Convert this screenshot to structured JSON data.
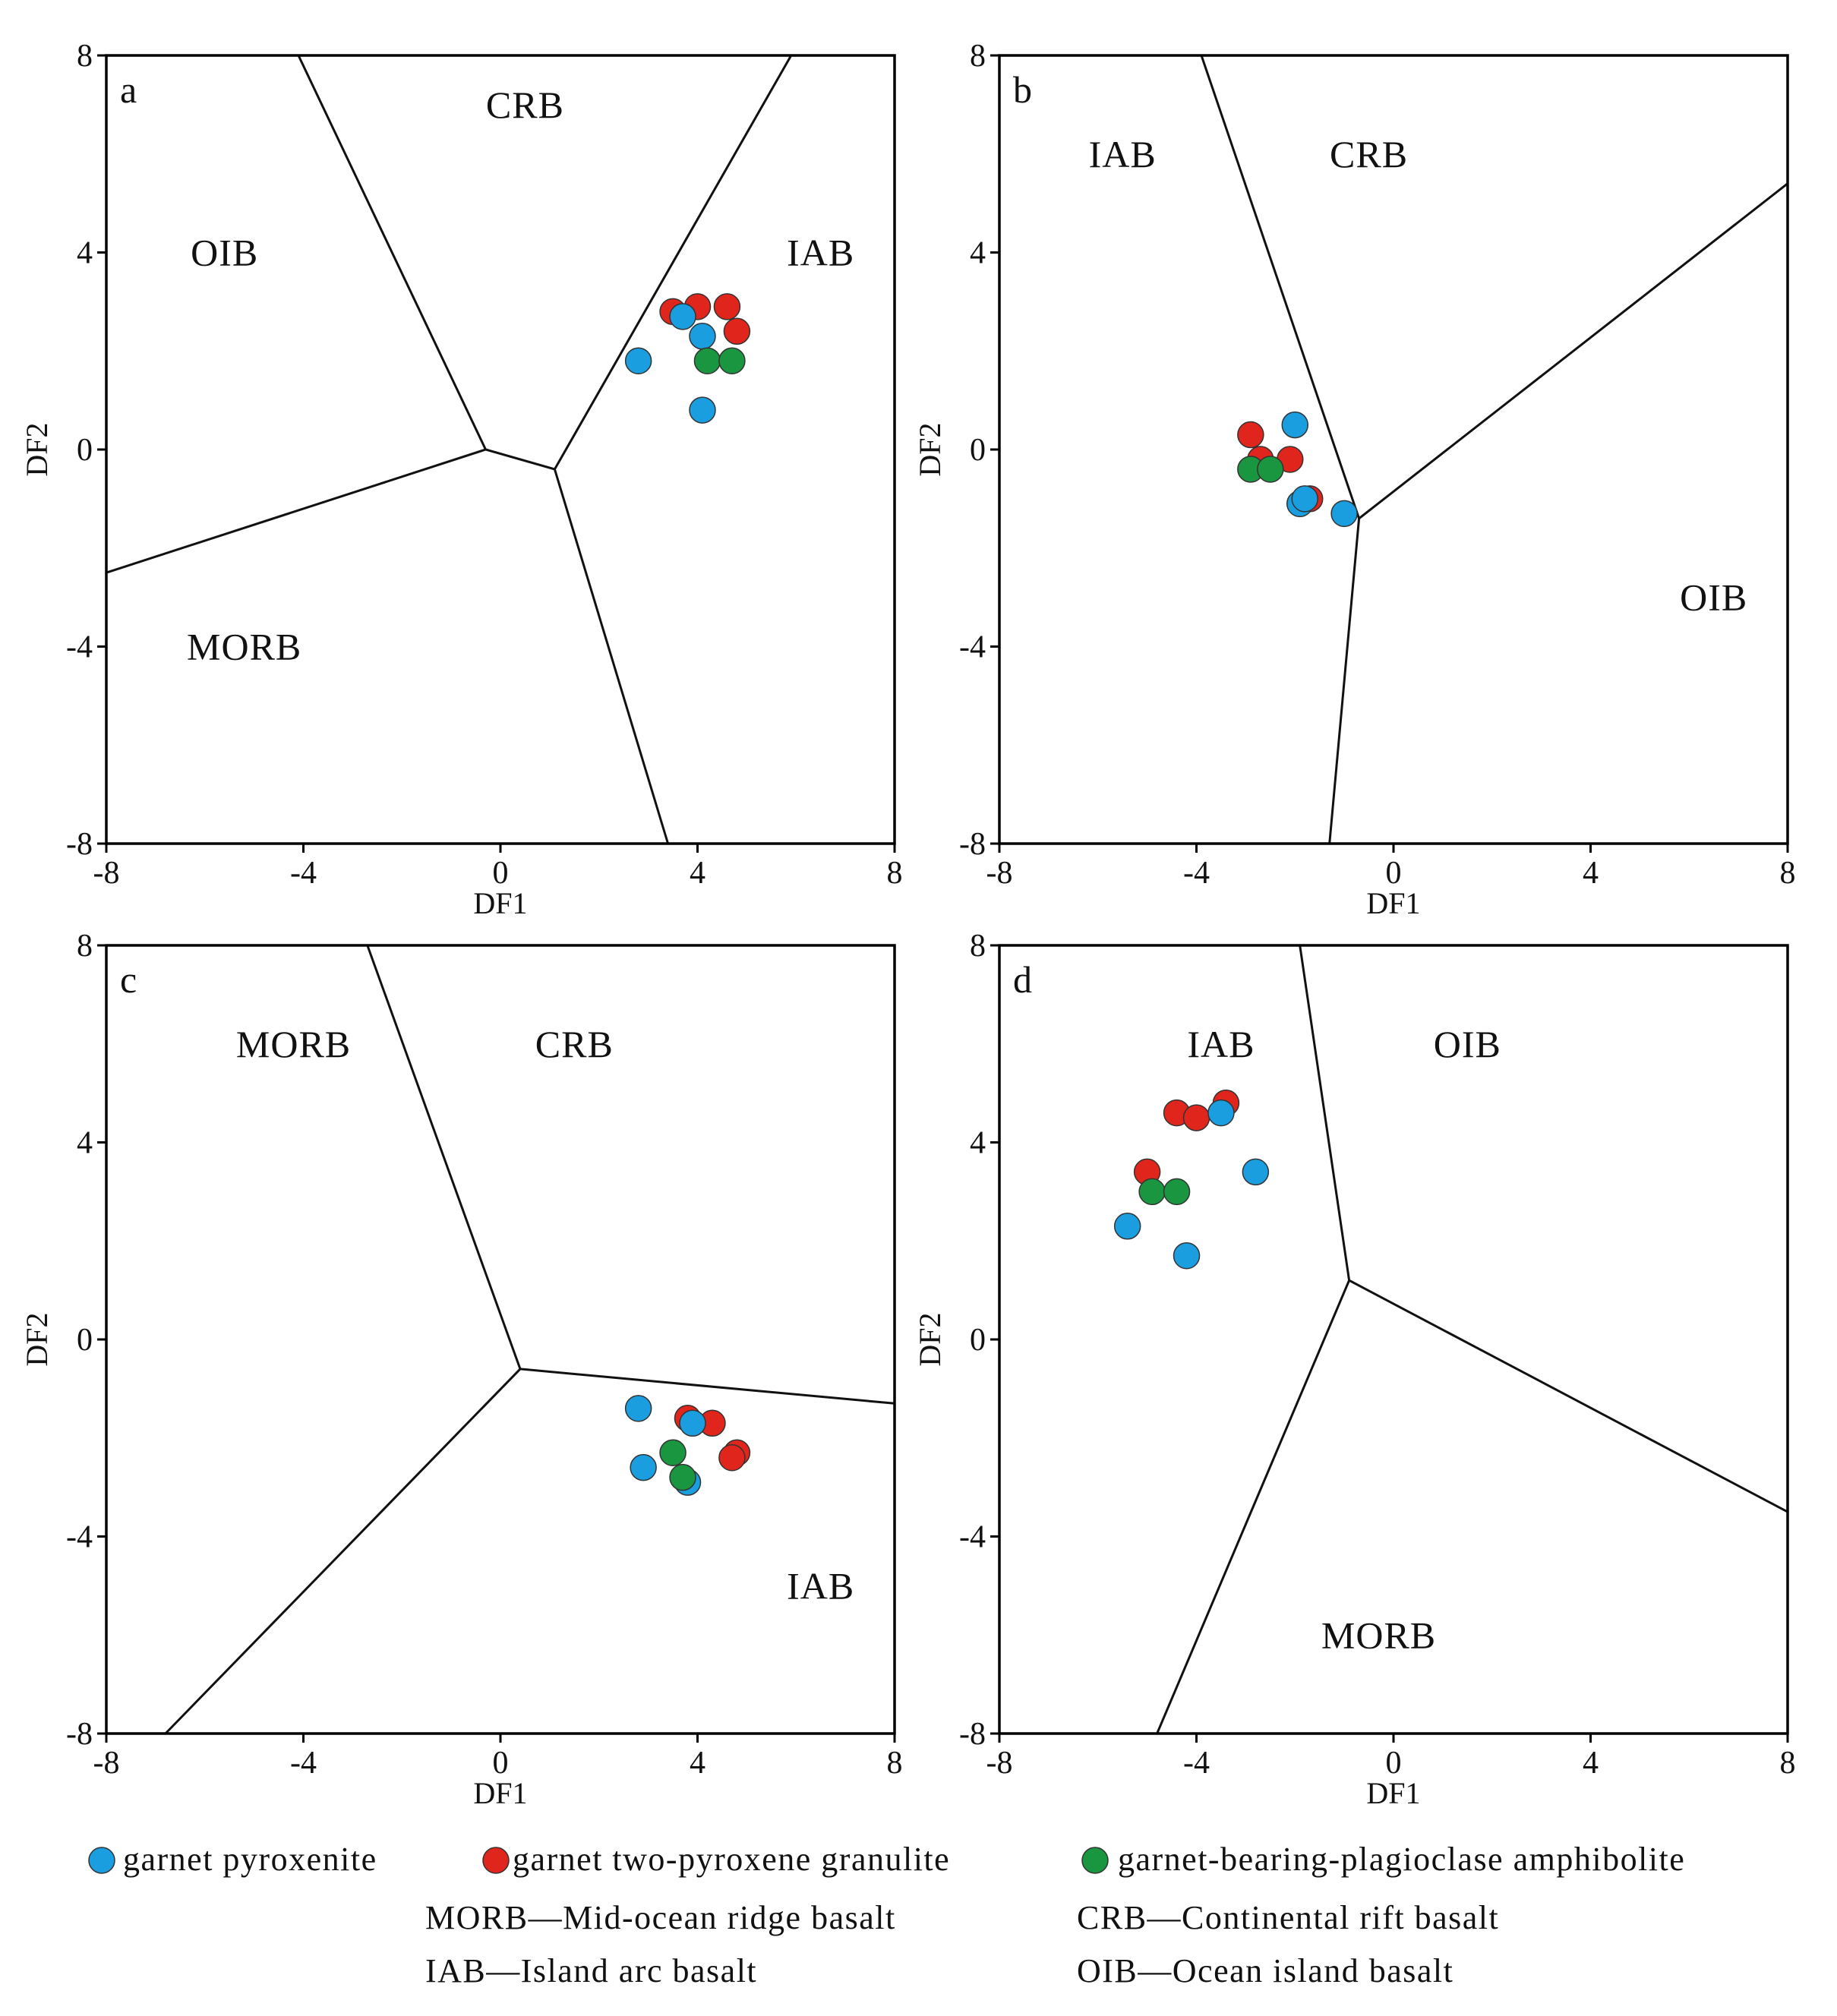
{
  "colors": {
    "garnet_pyroxenite": "#1a9ee0",
    "garnet_two_pyroxene_granulite": "#e0261c",
    "garnet_bearing_plagioclase_amphibolite": "#1a9640"
  },
  "legend": {
    "series": [
      {
        "key": "garnet_pyroxenite",
        "label": "garnet pyroxenite"
      },
      {
        "key": "garnet_two_pyroxene_granulite",
        "label": "garnet two-pyroxene granulite"
      },
      {
        "key": "garnet_bearing_plagioclase_amphibolite",
        "label": "garnet-bearing-plagioclase amphibolite"
      }
    ],
    "abbreviations": {
      "morb": "MORB—Mid-ocean ridge basalt",
      "crb": "CRB—Continental rift basalt",
      "iab": "IAB—Island  arc basalt",
      "oib": "OIB—Ocean island basalt"
    }
  },
  "chart_data": [
    {
      "type": "scatter",
      "panel": "a",
      "xlabel": "DF1",
      "ylabel": "DF2",
      "xlim": [
        -8,
        8
      ],
      "ylim": [
        -8,
        8
      ],
      "xticks": [
        -8,
        -4,
        0,
        4,
        8
      ],
      "yticks": [
        8,
        4,
        0,
        -4,
        -8
      ],
      "fields": [
        {
          "label": "CRB",
          "x": 0.5,
          "y": 7.0
        },
        {
          "label": "OIB",
          "x": -5.6,
          "y": 4.0
        },
        {
          "label": "IAB",
          "x": 6.5,
          "y": 4.0
        },
        {
          "label": "MORB",
          "x": -5.2,
          "y": -4.0
        }
      ],
      "boundaries": [
        [
          [
            -4.1,
            8
          ],
          [
            -0.3,
            0
          ],
          [
            1.1,
            -0.4
          ],
          [
            5.9,
            8
          ]
        ],
        [
          [
            -8,
            -2.5
          ],
          [
            -0.3,
            0
          ]
        ],
        [
          [
            1.1,
            -0.4
          ],
          [
            3.4,
            -8
          ]
        ]
      ],
      "series": [
        {
          "name": "garnet two-pyroxene granulite",
          "key": "garnet_two_pyroxene_granulite",
          "points": [
            [
              3.5,
              2.8
            ],
            [
              4.0,
              2.9
            ],
            [
              4.6,
              2.9
            ],
            [
              4.8,
              2.4
            ]
          ]
        },
        {
          "name": "garnet pyroxenite",
          "key": "garnet_pyroxenite",
          "points": [
            [
              3.7,
              2.7
            ],
            [
              4.1,
              2.3
            ],
            [
              2.8,
              1.8
            ],
            [
              4.1,
              0.8
            ]
          ]
        },
        {
          "name": "garnet-bearing-plagioclase amphibolite",
          "key": "garnet_bearing_plagioclase_amphibolite",
          "points": [
            [
              4.2,
              1.8
            ],
            [
              4.7,
              1.8
            ]
          ]
        }
      ]
    },
    {
      "type": "scatter",
      "panel": "b",
      "xlabel": "DF1",
      "ylabel": "DF2",
      "xlim": [
        -8,
        8
      ],
      "ylim": [
        -8,
        8
      ],
      "xticks": [
        -8,
        -4,
        0,
        4,
        8
      ],
      "yticks": [
        8,
        4,
        0,
        -4,
        -8
      ],
      "fields": [
        {
          "label": "IAB",
          "x": -5.5,
          "y": 6.0
        },
        {
          "label": "CRB",
          "x": -0.5,
          "y": 6.0
        },
        {
          "label": "OIB",
          "x": 6.5,
          "y": -3.0
        }
      ],
      "boundaries": [
        [
          [
            -3.9,
            8
          ],
          [
            -0.7,
            -1.4
          ],
          [
            -1.3,
            -8
          ]
        ],
        [
          [
            -0.7,
            -1.4
          ],
          [
            8,
            5.4
          ]
        ]
      ],
      "series": [
        {
          "name": "garnet two-pyroxene granulite",
          "key": "garnet_two_pyroxene_granulite",
          "points": [
            [
              -2.9,
              0.3
            ],
            [
              -2.7,
              -0.2
            ],
            [
              -2.1,
              -0.2
            ],
            [
              -1.7,
              -1.0
            ]
          ]
        },
        {
          "name": "garnet pyroxenite",
          "key": "garnet_pyroxenite",
          "points": [
            [
              -2.0,
              0.5
            ],
            [
              -1.9,
              -1.1
            ],
            [
              -1.8,
              -1.0
            ],
            [
              -1.0,
              -1.3
            ]
          ]
        },
        {
          "name": "garnet-bearing-plagioclase amphibolite",
          "key": "garnet_bearing_plagioclase_amphibolite",
          "points": [
            [
              -2.9,
              -0.4
            ],
            [
              -2.5,
              -0.4
            ]
          ]
        }
      ]
    },
    {
      "type": "scatter",
      "panel": "c",
      "xlabel": "DF1",
      "ylabel": "DF2",
      "xlim": [
        -8,
        8
      ],
      "ylim": [
        -8,
        8
      ],
      "xticks": [
        -8,
        -4,
        0,
        4,
        8
      ],
      "yticks": [
        8,
        4,
        0,
        -4,
        -8
      ],
      "fields": [
        {
          "label": "MORB",
          "x": -4.2,
          "y": 6.0
        },
        {
          "label": "CRB",
          "x": 1.5,
          "y": 6.0
        },
        {
          "label": "IAB",
          "x": 6.5,
          "y": -5.0
        }
      ],
      "boundaries": [
        [
          [
            -2.7,
            8
          ],
          [
            0.4,
            -0.6
          ],
          [
            8,
            -1.3
          ]
        ],
        [
          [
            0.4,
            -0.6
          ],
          [
            -6.8,
            -8
          ]
        ]
      ],
      "series": [
        {
          "name": "garnet two-pyroxene granulite",
          "key": "garnet_two_pyroxene_granulite",
          "points": [
            [
              3.8,
              -1.6
            ],
            [
              4.3,
              -1.7
            ],
            [
              4.8,
              -2.3
            ],
            [
              4.7,
              -2.4
            ]
          ]
        },
        {
          "name": "garnet pyroxenite",
          "key": "garnet_pyroxenite",
          "points": [
            [
              2.8,
              -1.4
            ],
            [
              3.9,
              -1.7
            ],
            [
              2.9,
              -2.6
            ],
            [
              3.8,
              -2.9
            ]
          ]
        },
        {
          "name": "garnet-bearing-plagioclase amphibolite",
          "key": "garnet_bearing_plagioclase_amphibolite",
          "points": [
            [
              3.5,
              -2.3
            ],
            [
              3.7,
              -2.8
            ]
          ]
        }
      ]
    },
    {
      "type": "scatter",
      "panel": "d",
      "xlabel": "DF1",
      "ylabel": "DF2",
      "xlim": [
        -8,
        8
      ],
      "ylim": [
        -8,
        8
      ],
      "xticks": [
        -8,
        -4,
        0,
        4,
        8
      ],
      "yticks": [
        8,
        4,
        0,
        -4,
        -8
      ],
      "fields": [
        {
          "label": "IAB",
          "x": -3.5,
          "y": 6.0
        },
        {
          "label": "OIB",
          "x": 1.5,
          "y": 6.0
        },
        {
          "label": "MORB",
          "x": -0.3,
          "y": -6.0
        }
      ],
      "boundaries": [
        [
          [
            -1.9,
            8
          ],
          [
            -0.9,
            1.2
          ],
          [
            8,
            -3.5
          ]
        ],
        [
          [
            -0.9,
            1.2
          ],
          [
            -4.8,
            -8
          ]
        ]
      ],
      "series": [
        {
          "name": "garnet two-pyroxene granulite",
          "key": "garnet_two_pyroxene_granulite",
          "points": [
            [
              -4.4,
              4.6
            ],
            [
              -4.0,
              4.5
            ],
            [
              -3.4,
              4.8
            ],
            [
              -5.0,
              3.4
            ]
          ]
        },
        {
          "name": "garnet pyroxenite",
          "key": "garnet_pyroxenite",
          "points": [
            [
              -3.5,
              4.6
            ],
            [
              -2.8,
              3.4
            ],
            [
              -5.4,
              2.3
            ],
            [
              -4.2,
              1.7
            ]
          ]
        },
        {
          "name": "garnet-bearing-plagioclase amphibolite",
          "key": "garnet_bearing_plagioclase_amphibolite",
          "points": [
            [
              -4.9,
              3.0
            ],
            [
              -4.4,
              3.0
            ]
          ]
        }
      ]
    }
  ]
}
